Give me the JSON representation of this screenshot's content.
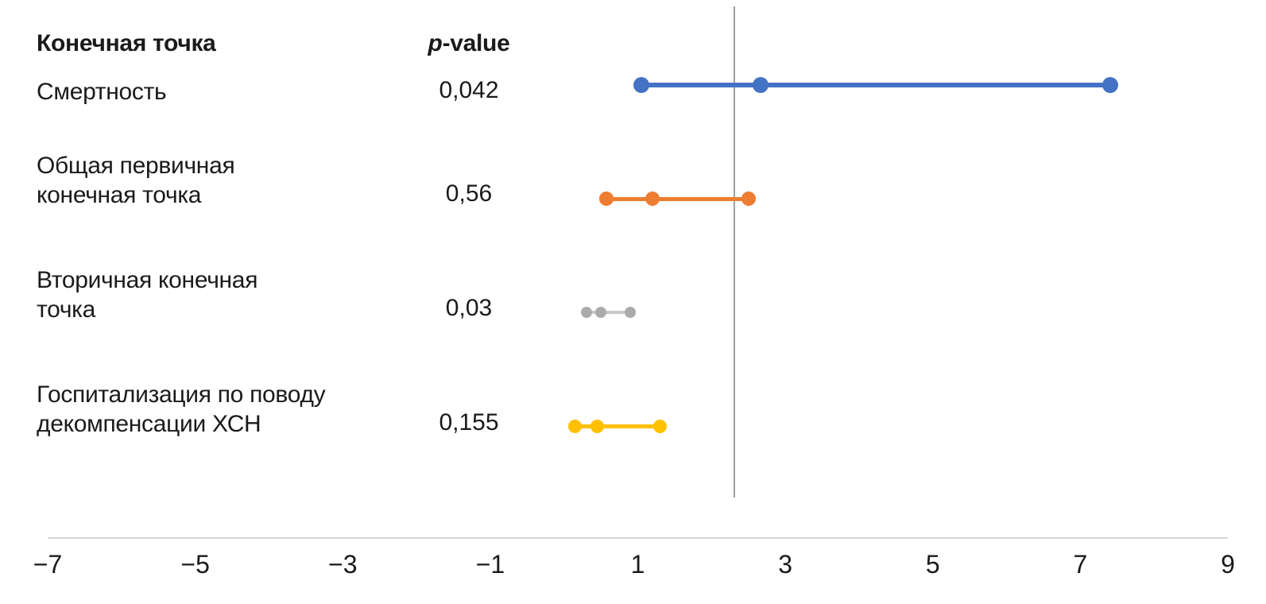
{
  "chart_data": {
    "type": "forest",
    "title": "",
    "columns": {
      "endpoint": "Конечная точка",
      "p_value_italic": "p",
      "p_value_rest": "-value"
    },
    "x_axis": {
      "min": -7,
      "max": 9,
      "ticks": [
        {
          "value": -7,
          "label": "−7"
        },
        {
          "value": -5,
          "label": "−5"
        },
        {
          "value": -3,
          "label": "−3"
        },
        {
          "value": -1,
          "label": "−1"
        },
        {
          "value": 1,
          "label": "1"
        },
        {
          "value": 3,
          "label": "3"
        },
        {
          "value": 5,
          "label": "5"
        },
        {
          "value": 7,
          "label": "7"
        },
        {
          "value": 9,
          "label": "9"
        }
      ],
      "grid": false
    },
    "reference_line_x": 2.3,
    "reference_line_color": "#a0a0a0",
    "rows": [
      {
        "label": "Смертность",
        "p_value": "0,042",
        "ci_low": 1.05,
        "estimate": 2.66,
        "ci_high": 7.4,
        "color": "#4472C4",
        "line_color": "#4472C4"
      },
      {
        "label": "Общая первичная\nконечная точка",
        "p_value": "0,56",
        "ci_low": 0.57,
        "estimate": 1.2,
        "ci_high": 2.5,
        "color": "#ED7D31",
        "line_color": "#ED7D31"
      },
      {
        "label": "Вторичная конечная\nточка",
        "p_value": "0,03",
        "ci_low": 0.3,
        "estimate": 0.5,
        "ci_high": 0.9,
        "color": "#ABABAB",
        "line_color": "#C8C8C8"
      },
      {
        "label": "Госпитализация по поводу\nдекомпенсации ХСН",
        "p_value": "0,155",
        "ci_low": 0.15,
        "estimate": 0.45,
        "ci_high": 1.3,
        "color": "#FFC000",
        "line_color": "#FFC000"
      }
    ]
  }
}
